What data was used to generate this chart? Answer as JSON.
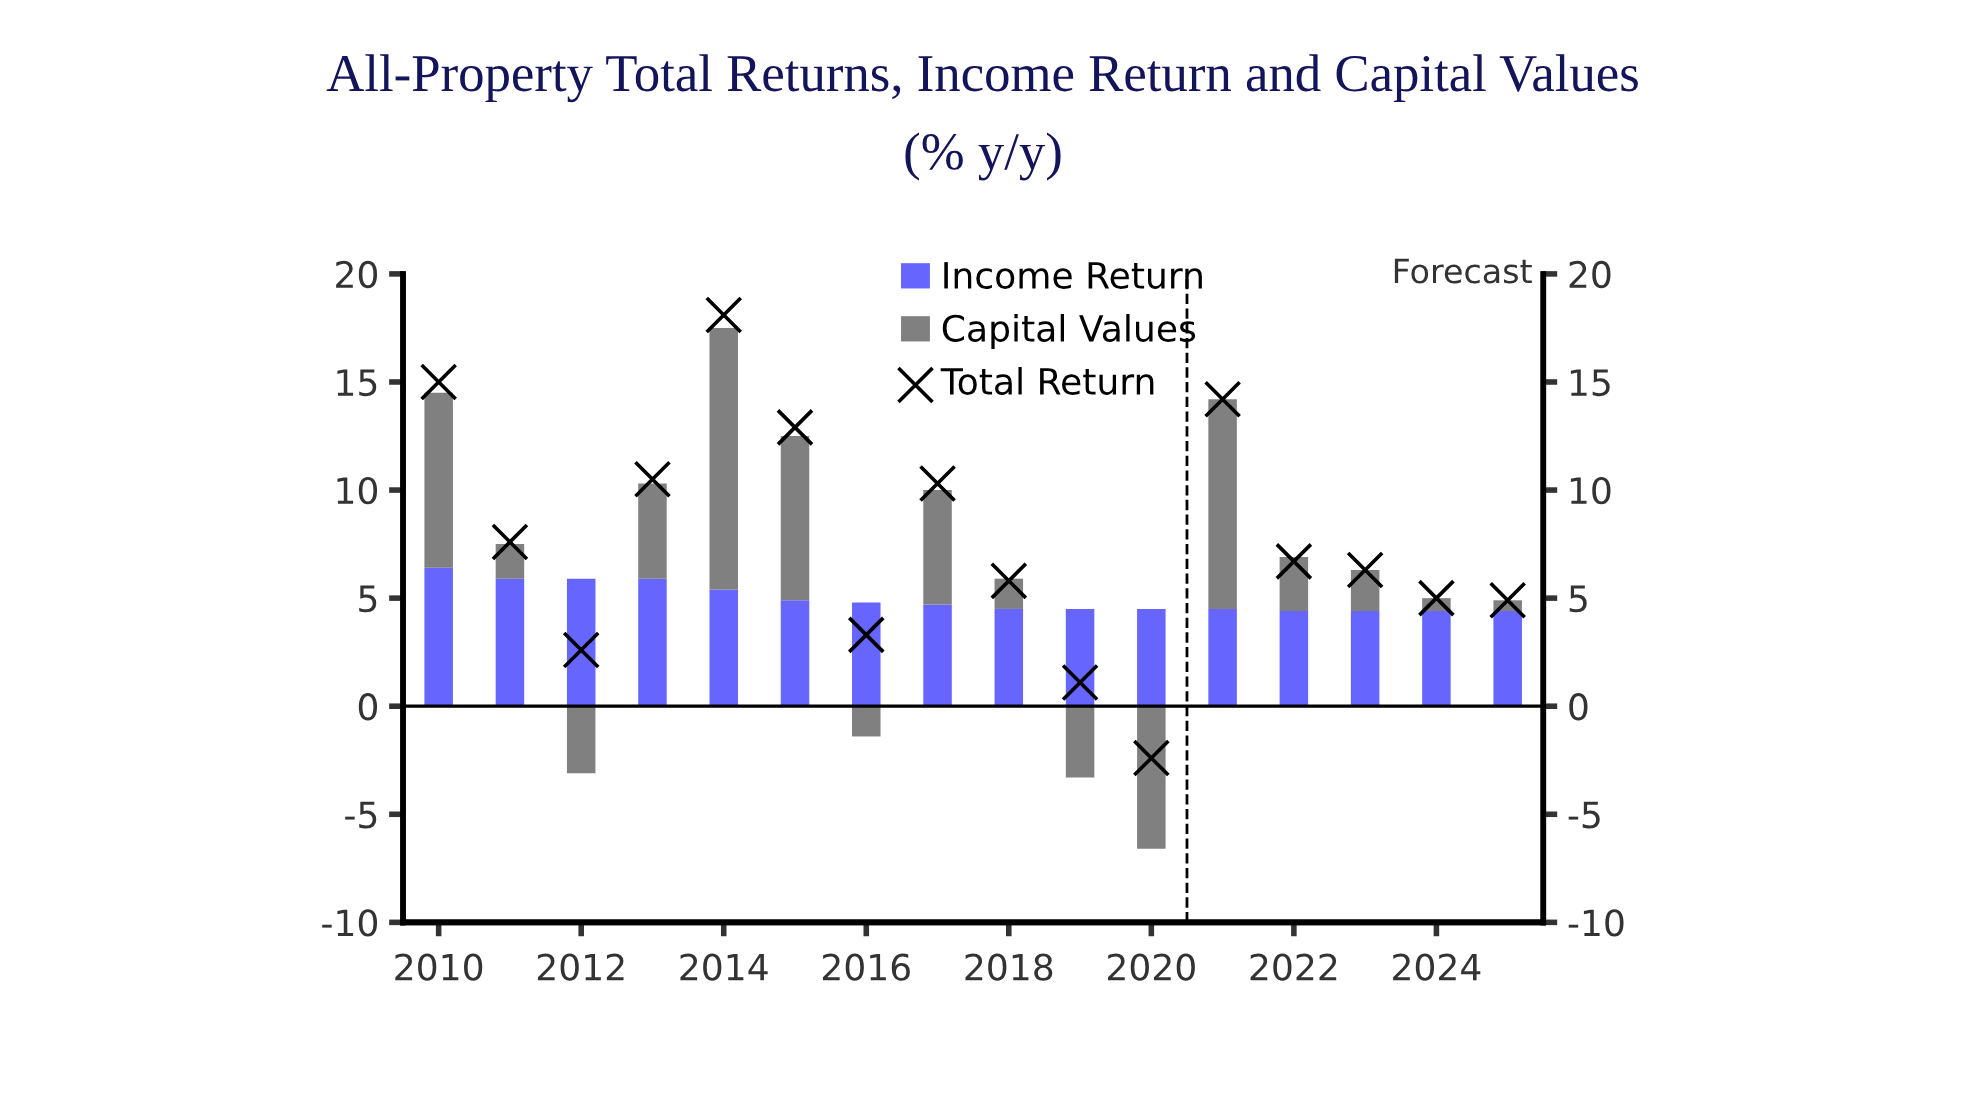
{
  "chart_data": {
    "type": "bar",
    "stacked": true,
    "title": "All-Property Total Returns, Income Return and Capital Values",
    "subtitle": "(% y/y)",
    "x": [
      2010,
      2011,
      2012,
      2013,
      2014,
      2015,
      2016,
      2017,
      2018,
      2019,
      2020,
      2021,
      2022,
      2023,
      2024,
      2025
    ],
    "series": [
      {
        "name": "Income Return",
        "color": "#6666ff",
        "values": [
          6.4,
          5.9,
          5.9,
          5.9,
          5.4,
          4.9,
          4.8,
          4.7,
          4.5,
          4.5,
          4.5,
          4.5,
          4.4,
          4.4,
          4.4,
          4.4
        ]
      },
      {
        "name": "Capital Values",
        "color": "#808080",
        "values": [
          8.1,
          1.6,
          -3.1,
          4.4,
          12.1,
          7.6,
          -1.4,
          5.3,
          1.4,
          -3.3,
          -6.6,
          9.7,
          2.5,
          1.9,
          0.6,
          0.5
        ]
      },
      {
        "name": "Total Return",
        "type": "scatter",
        "marker": "cross",
        "color": "#000000",
        "values": [
          15.0,
          7.6,
          2.6,
          10.5,
          18.1,
          12.9,
          3.3,
          10.3,
          5.8,
          1.1,
          -2.4,
          14.2,
          6.7,
          6.3,
          5.0,
          4.9
        ]
      }
    ],
    "xlim": [
      2009.5,
      2025.5
    ],
    "xticks": [
      2010,
      2012,
      2014,
      2016,
      2018,
      2020,
      2022,
      2024
    ],
    "ylim": [
      -10,
      20
    ],
    "yticks": [
      -10,
      -5,
      0,
      5,
      10,
      15,
      20
    ],
    "y2lim": [
      -10,
      20
    ],
    "y2ticks": [
      -10,
      -5,
      0,
      5,
      10,
      15,
      20
    ],
    "ref_lines": [
      {
        "axis": "x",
        "value": 2020.5,
        "color": "#000000",
        "line_style": "dashed"
      },
      {
        "axis": "y",
        "value": 0,
        "color": "#000000",
        "line_style": "solid"
      }
    ],
    "annotations": [
      "Forecast"
    ],
    "legend": "top",
    "grid": false
  }
}
